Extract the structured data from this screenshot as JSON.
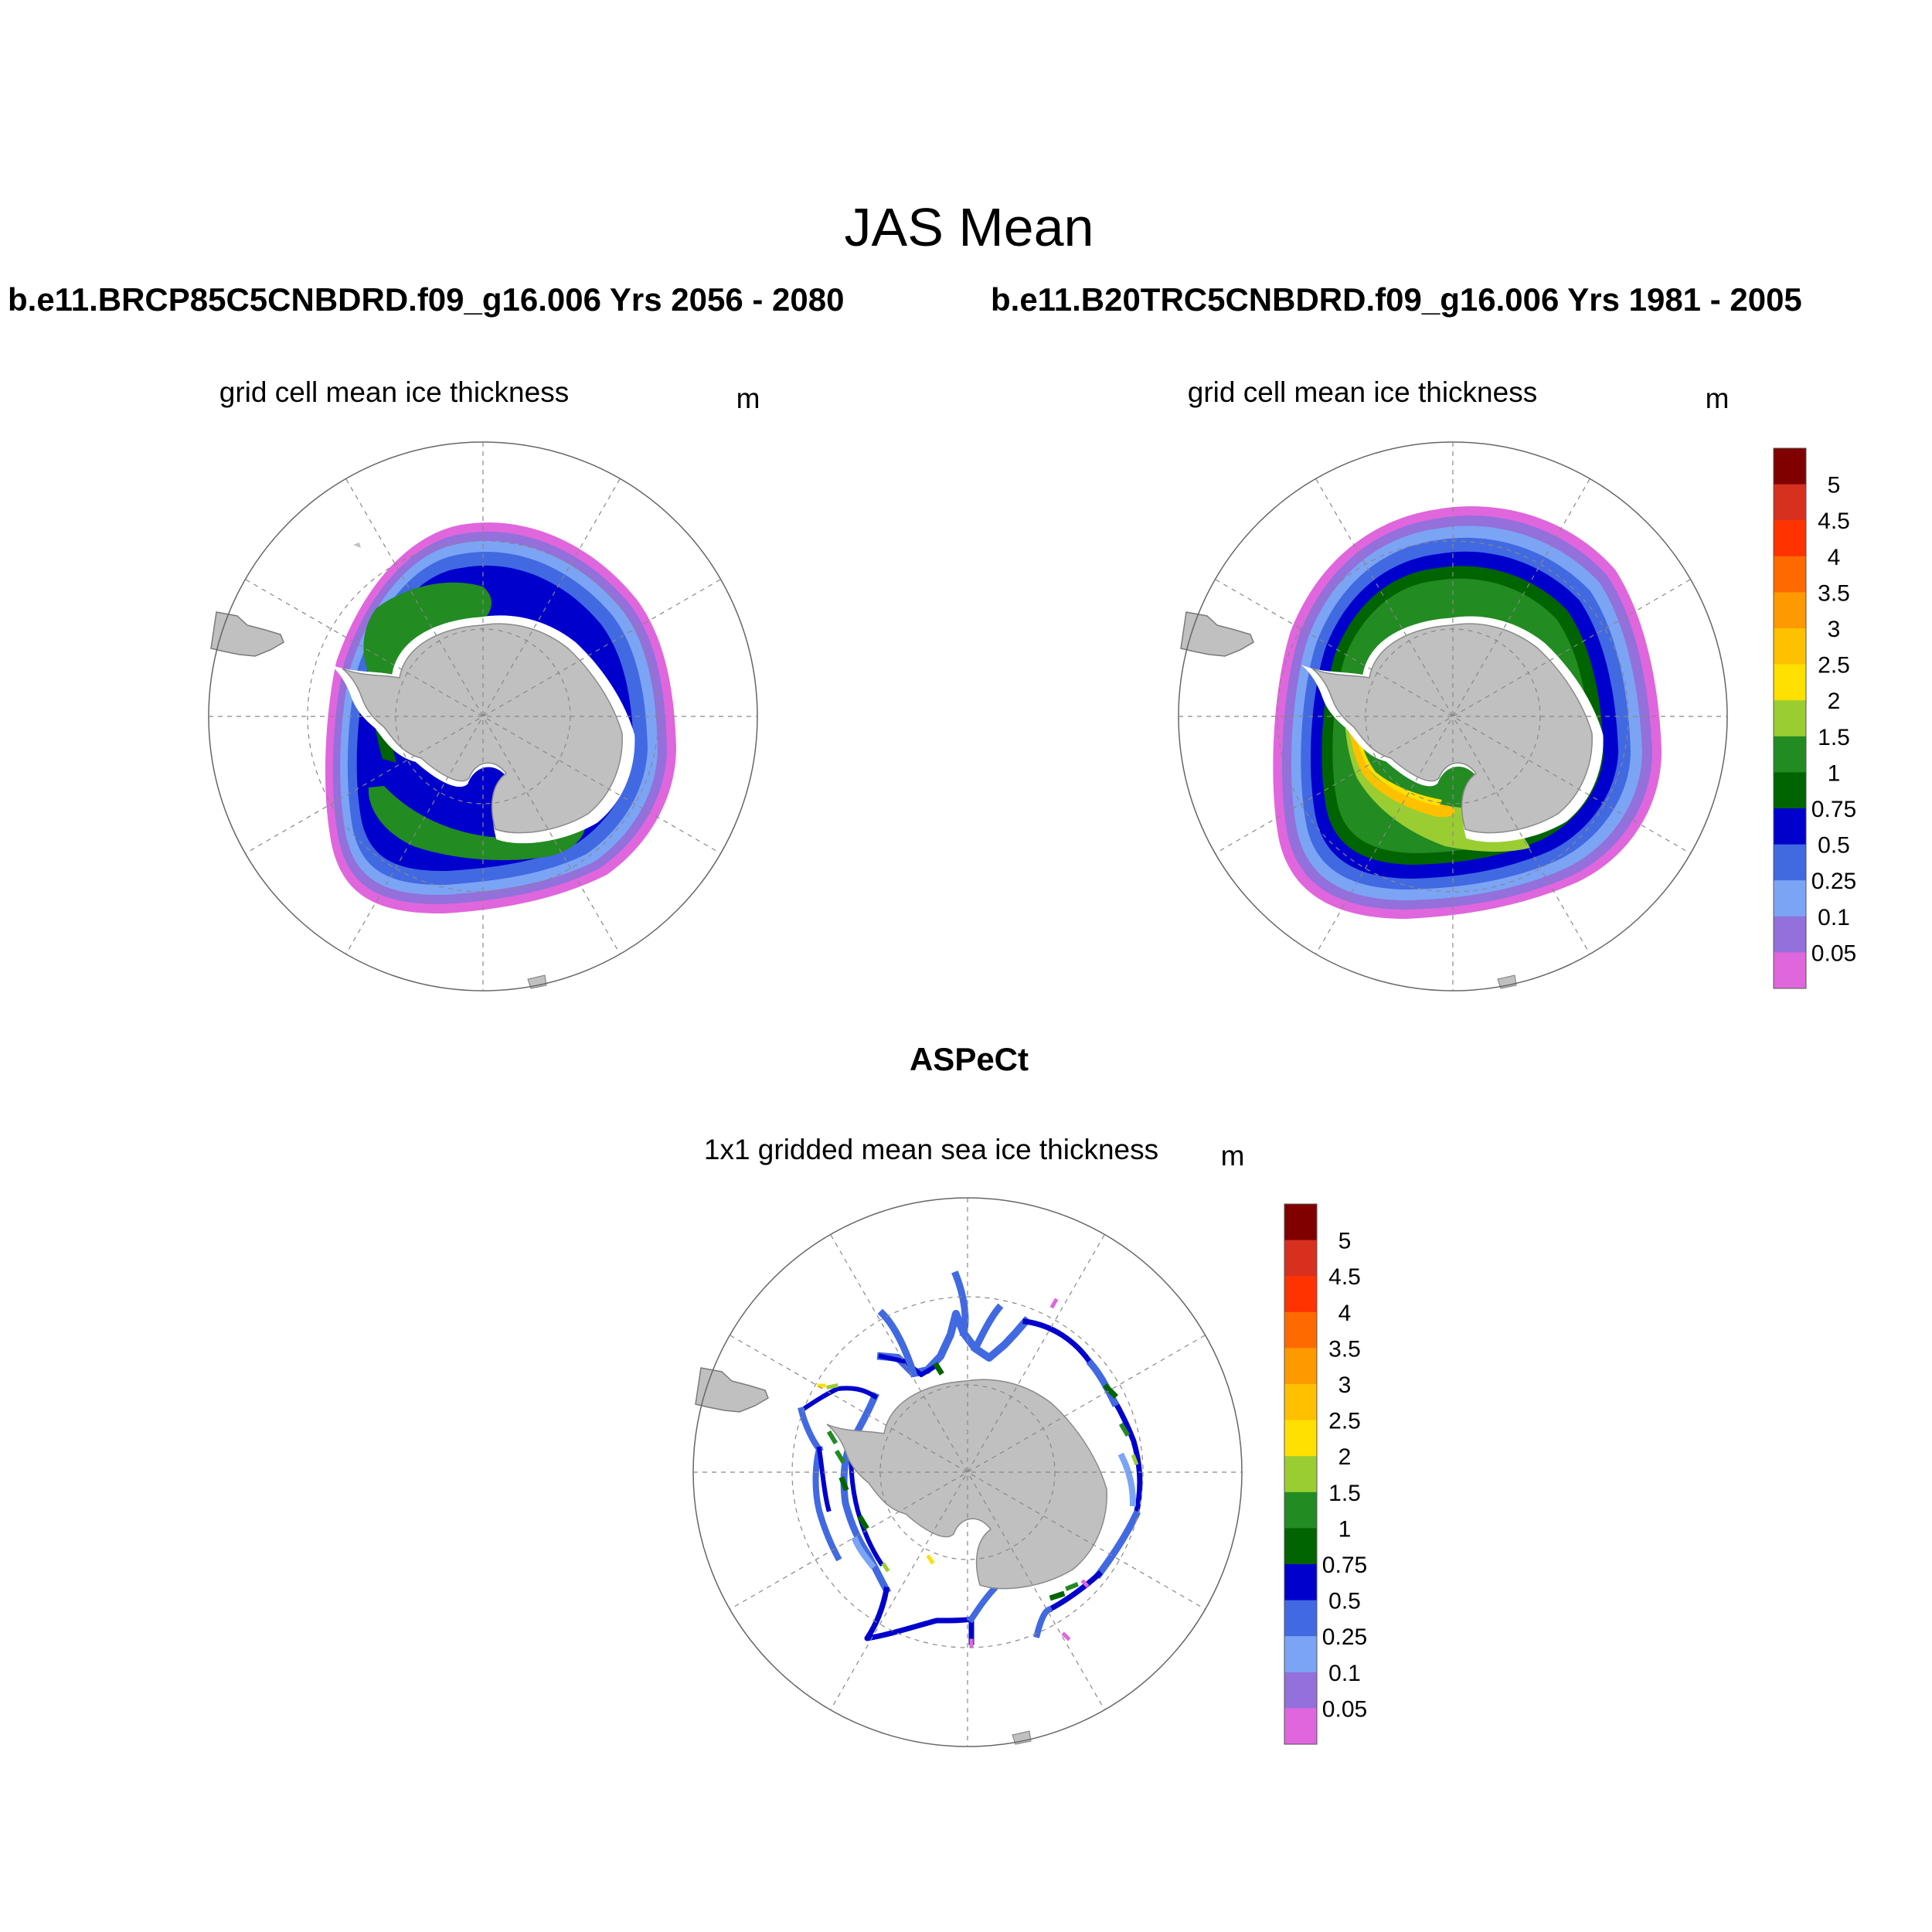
{
  "figure": {
    "title": "JAS Mean",
    "case_left": "b.e11.BRCP85C5CNBDRD.f09_g16.006  Yrs 2056 - 2080",
    "case_right": "b.e11.B20TRC5CNBDRD.f09_g16.006  Yrs 1981 - 2005",
    "obs_title": "ASPeCt"
  },
  "panels": [
    {
      "id": "model-future",
      "title": "grid cell mean ice thickness",
      "units": "m"
    },
    {
      "id": "model-historical",
      "title": "grid cell mean ice thickness",
      "units": "m"
    },
    {
      "id": "aspect-obs",
      "title": "1x1 gridded mean sea ice thickness",
      "units": "m"
    }
  ],
  "colorbar": {
    "labels": [
      "5",
      "4.5",
      "4",
      "3.5",
      "3",
      "2.5",
      "2",
      "1.5",
      "1",
      "0.75",
      "0.5",
      "0.25",
      "0.1",
      "0.05"
    ],
    "colors_top_to_bottom": [
      "#800000",
      "#d7301f",
      "#ff3300",
      "#ff6a00",
      "#ff9900",
      "#ffc000",
      "#ffe000",
      "#9acd32",
      "#228b22",
      "#006400",
      "#0000cd",
      "#4169e1",
      "#7ba4f5",
      "#9370db",
      "#e066dd"
    ]
  },
  "map_colors": {
    "land": "#c0c0c0",
    "land_edge": "#7a7a7a",
    "grid": "#777777",
    "ocean": "#ffffff"
  }
}
